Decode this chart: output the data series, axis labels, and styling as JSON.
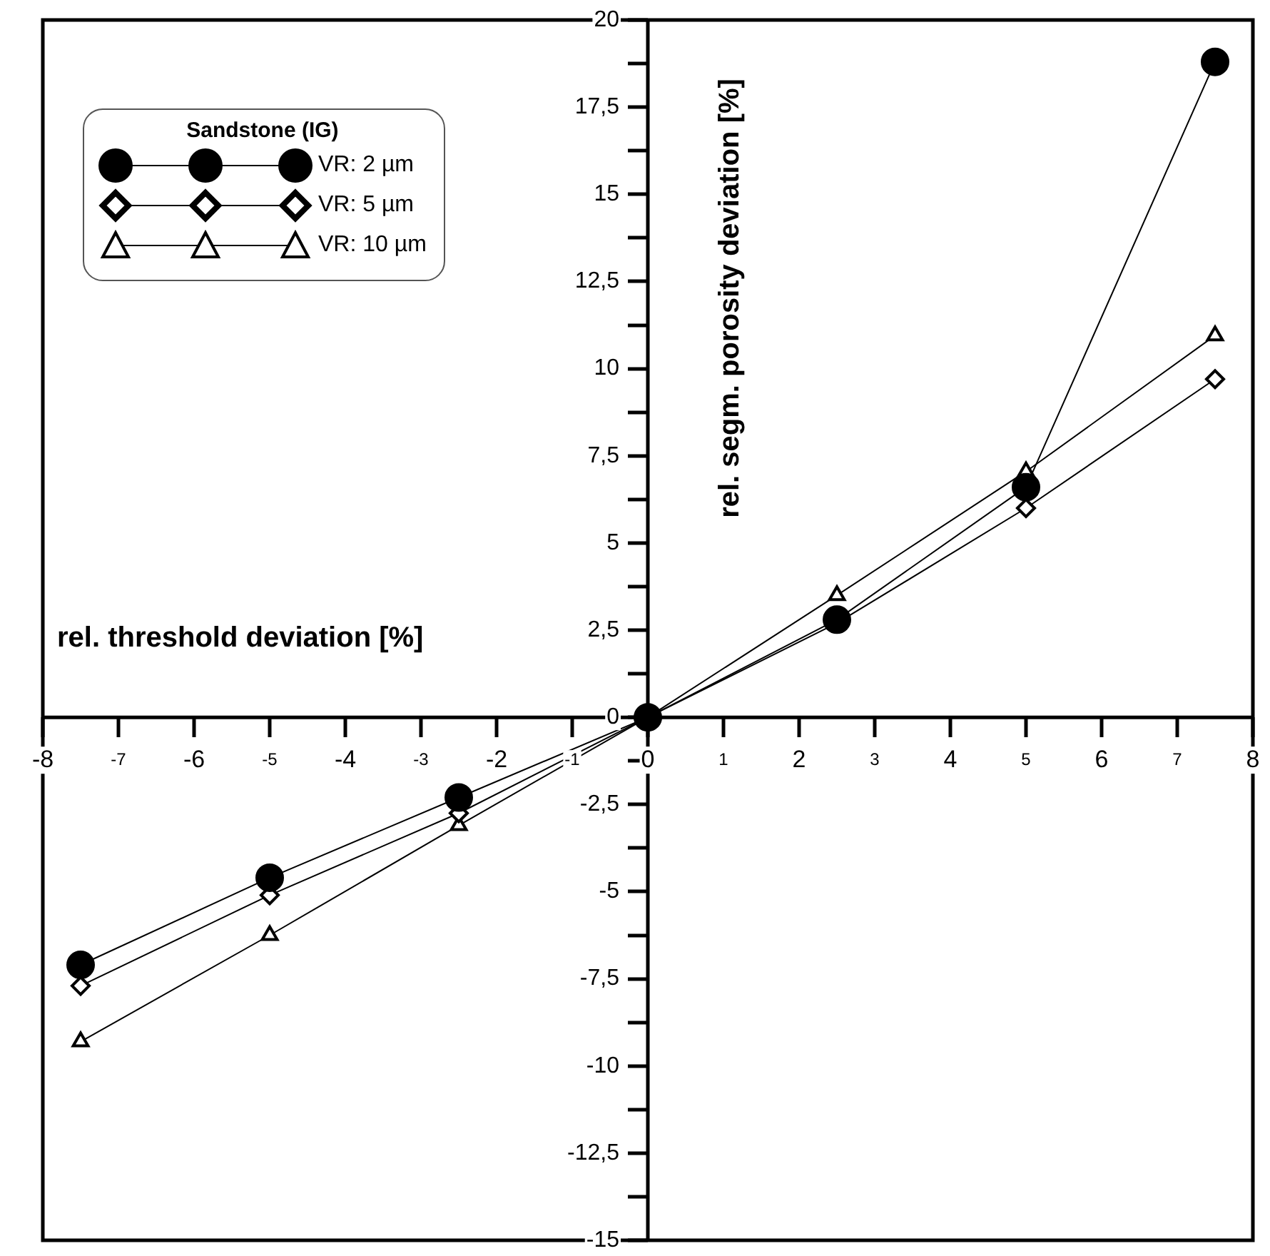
{
  "chart_data": {
    "type": "line",
    "xlabel": "rel. threshold deviation [%]",
    "ylabel": "rel. segm. porosity deviation [%]",
    "legend_title": "Sandstone (IG)",
    "legend": "top left",
    "grid": false,
    "line_style": "solid",
    "xlim": [
      -8,
      8
    ],
    "xticks": [
      -8,
      -7,
      -6,
      -5,
      -4,
      -3,
      -2,
      -1,
      0,
      1,
      2,
      3,
      4,
      5,
      6,
      7,
      8
    ],
    "ylim": [
      -15,
      20
    ],
    "yticks": [
      -15,
      {
        "value": -13.75,
        "label": null
      },
      {
        "value": -12.5,
        "label": "-12,5"
      },
      {
        "value": -11.25,
        "label": null
      },
      -10,
      {
        "value": -8.75,
        "label": null
      },
      {
        "value": -7.5,
        "label": "-7,5"
      },
      {
        "value": -6.25,
        "label": null
      },
      -5,
      {
        "value": -3.75,
        "label": null
      },
      {
        "value": -2.5,
        "label": "-2,5"
      },
      {
        "value": -1.25,
        "label": null
      },
      0,
      {
        "value": 1.25,
        "label": null
      },
      {
        "value": 2.5,
        "label": "2,5"
      },
      {
        "value": 3.75,
        "label": null
      },
      5,
      {
        "value": 6.25,
        "label": null
      },
      {
        "value": 7.5,
        "label": "7,5"
      },
      {
        "value": 8.75,
        "label": null
      },
      10,
      {
        "value": 11.25,
        "label": null
      },
      {
        "value": 12.5,
        "label": "12,5"
      },
      {
        "value": 13.75,
        "label": null
      },
      15,
      {
        "value": 16.25,
        "label": null
      },
      {
        "value": 17.5,
        "label": "17,5"
      },
      {
        "value": 18.75,
        "label": null
      },
      20
    ],
    "x": [
      -7.5,
      -5,
      -2.5,
      0,
      2.5,
      5,
      7.5
    ],
    "series": [
      {
        "name": "VR: 2 µm",
        "color": "#000000",
        "marker": "circle",
        "values": [
          -7.1,
          -4.6,
          -2.3,
          0,
          2.8,
          6.6,
          18.8
        ]
      },
      {
        "name": "VR: 5 µm",
        "color": "#000000",
        "marker": "diamond",
        "values": [
          -7.7,
          -5.1,
          -2.75,
          0,
          2.7,
          6.0,
          9.7
        ]
      },
      {
        "name": "VR: 10 µm",
        "color": "#000000",
        "marker": "triangle",
        "values": [
          -9.3,
          -6.25,
          -3.1,
          0,
          3.5,
          7.05,
          10.95
        ]
      }
    ]
  }
}
